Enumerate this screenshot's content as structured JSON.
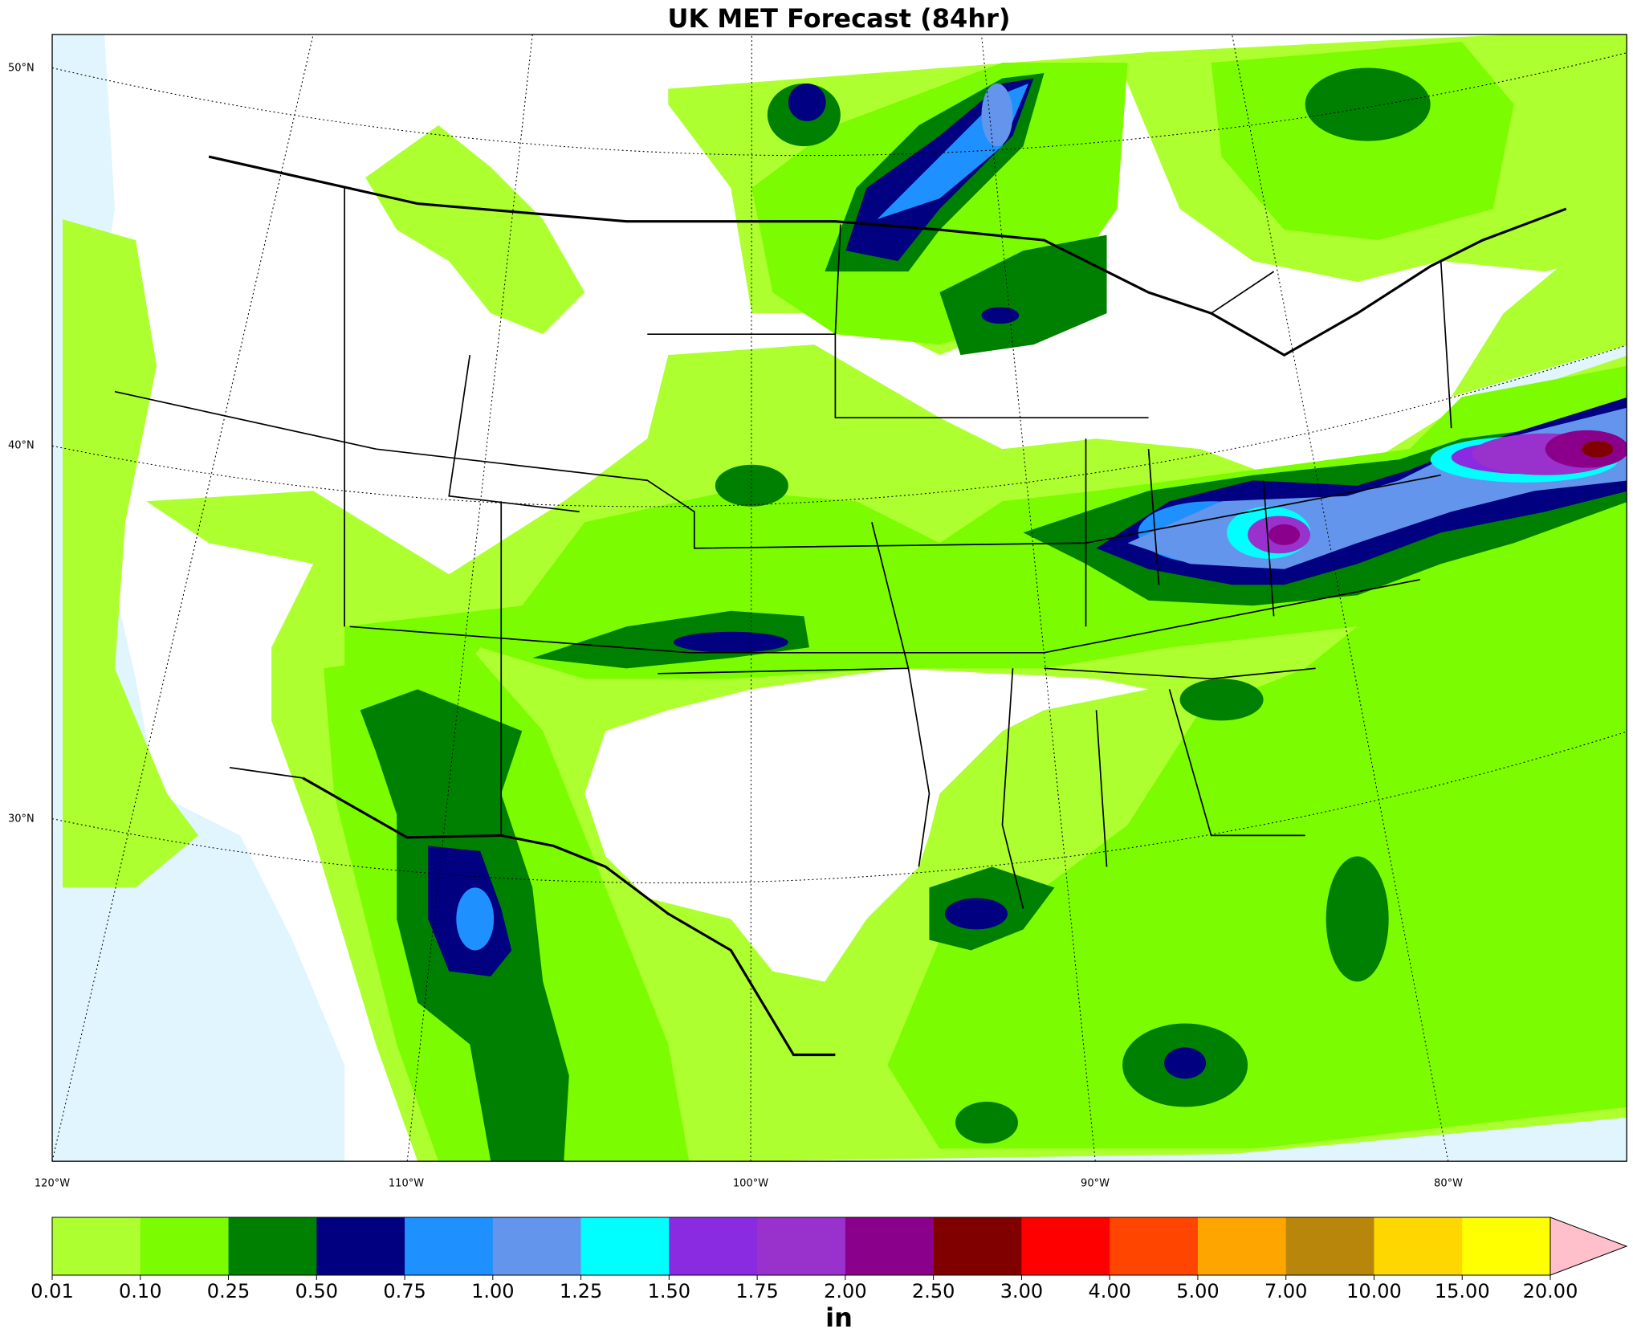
{
  "title": "UK MET Forecast (84hr)",
  "map": {
    "lat_labels": [
      "50°N",
      "40°N",
      "30°N"
    ],
    "lon_labels": [
      "120°W",
      "110°W",
      "100°W",
      "90°W",
      "80°W"
    ]
  },
  "colorbar": {
    "ticks": [
      "0.01",
      "0.10",
      "0.25",
      "0.50",
      "0.75",
      "1.00",
      "1.25",
      "1.50",
      "1.75",
      "2.00",
      "2.50",
      "3.00",
      "4.00",
      "5.00",
      "7.00",
      "10.00",
      "15.00",
      "20.00"
    ],
    "colors": [
      "#adff2f",
      "#7cfc00",
      "#008000",
      "#000080",
      "#1e90ff",
      "#6495ed",
      "#00ffff",
      "#8a2be2",
      "#9932cc",
      "#8b008b",
      "#800000",
      "#ff0000",
      "#ff4500",
      "#ffa500",
      "#b8860b",
      "#ffd700",
      "#ffff00"
    ],
    "extend_color": "#ffc0cb",
    "label": "in"
  }
}
